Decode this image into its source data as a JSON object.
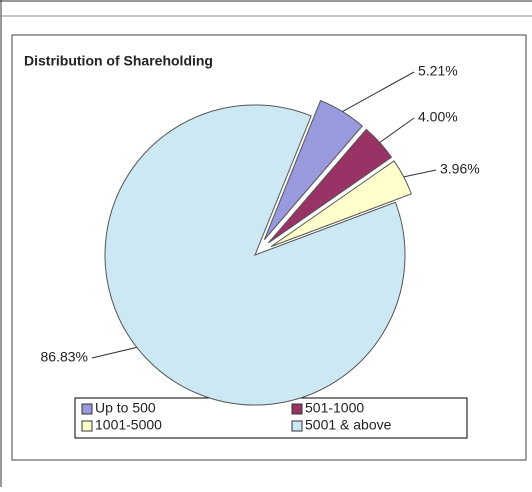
{
  "chart_data": {
    "type": "pie",
    "title": "Distribution  of Shareholding",
    "categories": [
      "Up to 500",
      "501-1000",
      "1001-5000",
      "5001 & above"
    ],
    "values": [
      5.21,
      4.0,
      3.96,
      86.83
    ],
    "value_labels": [
      "5.21%",
      "4.00%",
      "3.96%",
      "86.83%"
    ],
    "colors": [
      "#9999dd",
      "#993366",
      "#ffffcc",
      "#cce8f2"
    ],
    "legend": "bottom"
  }
}
